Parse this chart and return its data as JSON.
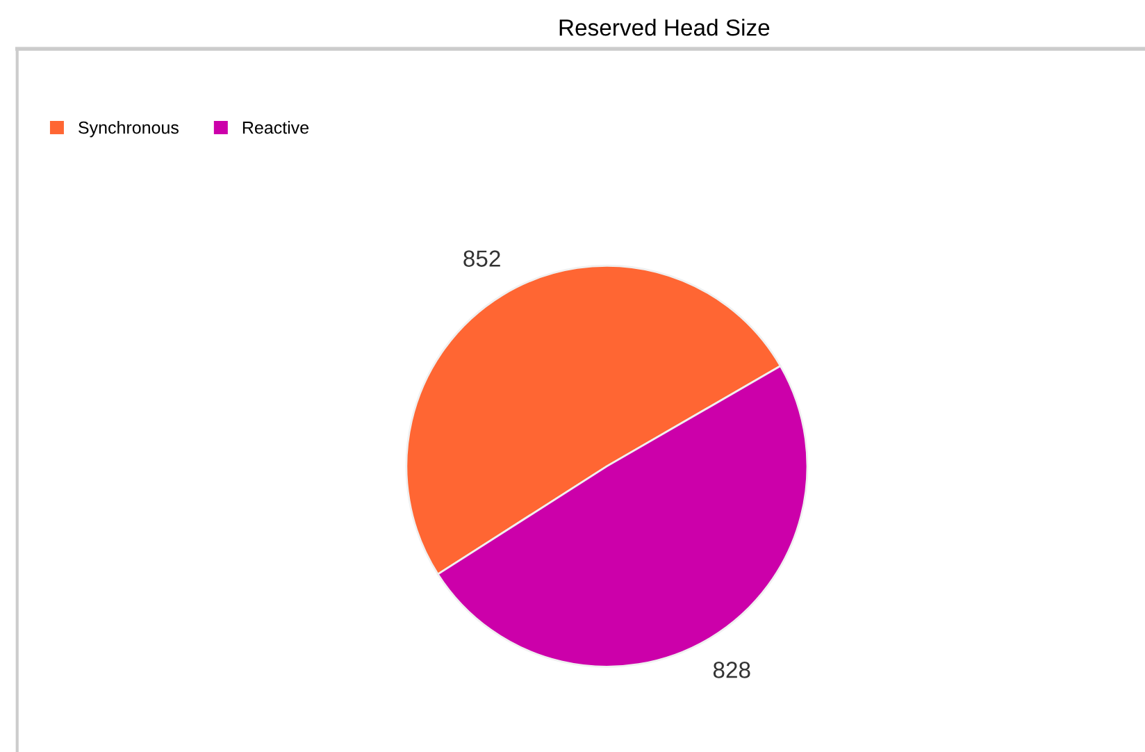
{
  "chart_data": {
    "type": "pie",
    "title": "Reserved Head Size",
    "categories": [
      "Synchronous",
      "Reactive"
    ],
    "values": [
      852,
      828
    ],
    "colors": [
      "#ff6633",
      "#cc00aa"
    ],
    "data_labels": true,
    "legend": "top left"
  }
}
